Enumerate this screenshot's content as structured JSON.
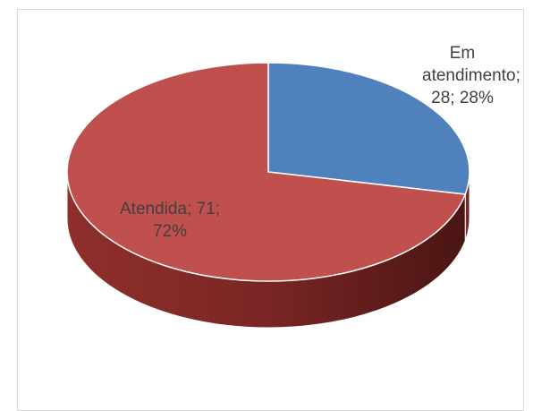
{
  "chart_data": {
    "type": "pie",
    "style": "3d",
    "title": "",
    "slices": [
      {
        "name": "Em atendimento",
        "value": 28,
        "percent": 28,
        "color": "#4f81bd",
        "label": "Em atendimento; 28; 28%"
      },
      {
        "name": "Atendida",
        "value": 71,
        "percent": 72,
        "color": "#c0504d",
        "label": "Atendida; 71; 72%"
      }
    ],
    "legend": "none",
    "data_labels": "category; value; percentage"
  },
  "labels": {
    "em_atendimento": "Em atendimento; 28; 28%",
    "atendida": "Atendida; 71; 72%"
  }
}
